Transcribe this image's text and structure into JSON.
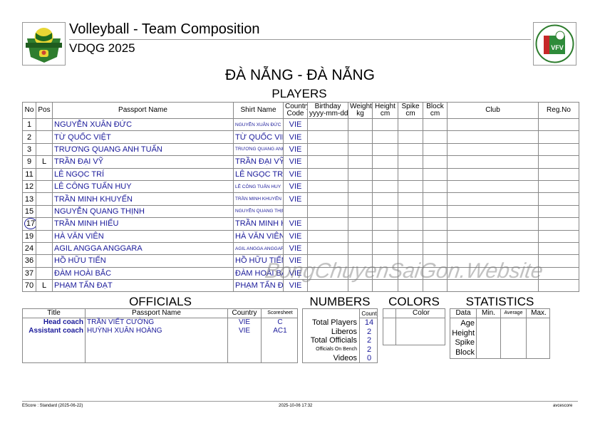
{
  "header": {
    "title": "Volleyball - Team Composition",
    "subtitle": "VDQG 2025",
    "team": "ĐÀ NẴNG - ĐÀ NẴNG",
    "left_logo": "VĐQG 2025 league logo",
    "right_logo": "VFV",
    "right_logo_text": "LIÊN ĐOÀN BÓNG CHUYỀN VIỆT NAM"
  },
  "players": {
    "section": "PLAYERS",
    "columns": [
      "No",
      "Pos",
      "Passport Name",
      "Shirt Name",
      "Country Code",
      "Birthday yyyy-mm-dd",
      "Weight kg",
      "Height cm",
      "Spike cm",
      "Block cm",
      "Club",
      "Reg.No"
    ],
    "rows": [
      {
        "no": "1",
        "pos": "",
        "name": "NGUYỄN XUÂN ĐỨC",
        "shirt": "NGUYỄN XUÂN ĐỨC",
        "country": "VIE",
        "small": true
      },
      {
        "no": "2",
        "pos": "",
        "name": "TỪ QUỐC VIỆT",
        "shirt": "TỪ QUỐC VIỆT",
        "country": "VIE",
        "small": false
      },
      {
        "no": "3",
        "pos": "",
        "name": "TRƯƠNG QUANG ANH TUẤN",
        "shirt": "TRƯƠNG QUANG ANH TUẤN",
        "country": "VIE",
        "small": true
      },
      {
        "no": "9",
        "pos": "L",
        "name": "TRẦN ĐẠI VỸ",
        "shirt": "TRẦN ĐẠI VỸ",
        "country": "VIE",
        "small": false
      },
      {
        "no": "11",
        "pos": "",
        "name": "LÊ NGỌC TRÍ",
        "shirt": "LÊ NGỌC TRÍ",
        "country": "VIE",
        "small": false
      },
      {
        "no": "12",
        "pos": "",
        "name": "LÊ CÔNG TUẤN HUY",
        "shirt": "LÊ CÔNG TUẤN HUY",
        "country": "VIE",
        "small": true
      },
      {
        "no": "13",
        "pos": "",
        "name": "TRẦN MINH KHUYẾN",
        "shirt": "TRẦN MINH KHUYẾN",
        "country": "VIE",
        "small": true
      },
      {
        "no": "15",
        "pos": "",
        "name": "NGUYỄN QUANG THỊNH",
        "shirt": "NGUYỄN QUANG THỊNH",
        "country": "",
        "small": true
      },
      {
        "no": "17",
        "pos": "",
        "name": "TRẦN MINH HIẾU",
        "shirt": "TRẦN MINH HIẾU",
        "country": "VIE",
        "small": false,
        "captain": true
      },
      {
        "no": "19",
        "pos": "",
        "name": "HÀ VĂN VIÊN",
        "shirt": "HÀ VĂN VIÊN",
        "country": "VIE",
        "small": false
      },
      {
        "no": "24",
        "pos": "",
        "name": "AGIL ANGGA ANGGARA",
        "shirt": "AGIL ANGGA ANGGARA",
        "country": "VIE",
        "small": true
      },
      {
        "no": "36",
        "pos": "",
        "name": "HỒ HỮU TIẾN",
        "shirt": "HỒ HỮU TIẾN",
        "country": "VIE",
        "small": false
      },
      {
        "no": "37",
        "pos": "",
        "name": "ĐÀM HOÀI BẮC",
        "shirt": "ĐÀM HOÀI BẮC",
        "country": "VIE",
        "small": false
      },
      {
        "no": "70",
        "pos": "L",
        "name": "PHẠM TẤN ĐẠT",
        "shirt": "PHẠM TẤN ĐẠT",
        "country": "VIE",
        "small": false
      }
    ]
  },
  "officials": {
    "section": "OFFICIALS",
    "columns": [
      "Title",
      "Passport Name",
      "Country",
      "Scoresheet"
    ],
    "rows": [
      {
        "title": "Head coach",
        "name": "TRẦN VIẾT CƯỜNG",
        "country": "VIE",
        "sheet": "C"
      },
      {
        "title": "Assistant coach",
        "name": "HUỲNH XUÂN HOÀNG",
        "country": "VIE",
        "sheet": "AC1"
      }
    ]
  },
  "numbers": {
    "section": "NUMBERS",
    "count_header": "Count",
    "rows": [
      {
        "label": "Total Players",
        "value": "14"
      },
      {
        "label": "Liberos",
        "value": "2"
      },
      {
        "label": "Total Officials",
        "value": "2"
      },
      {
        "label": "Officials On Bench",
        "value": "2"
      },
      {
        "label": "Videos",
        "value": "0"
      }
    ]
  },
  "colors": {
    "section": "COLORS",
    "color_header": "Color"
  },
  "statistics": {
    "section": "STATISTICS",
    "columns": [
      "Data",
      "Min.",
      "Average",
      "Max."
    ],
    "rows": [
      "Age",
      "Height",
      "Spike",
      "Block"
    ]
  },
  "footer": {
    "left": "EScore : Standard (2025-06-22)",
    "center": "2025-10-06 17:32",
    "right": "avcescore"
  },
  "watermark": "BongChuyenSaiGon.Website",
  "colors_theme": {
    "text_blue": "#1a1a9a",
    "border": "#888888"
  }
}
